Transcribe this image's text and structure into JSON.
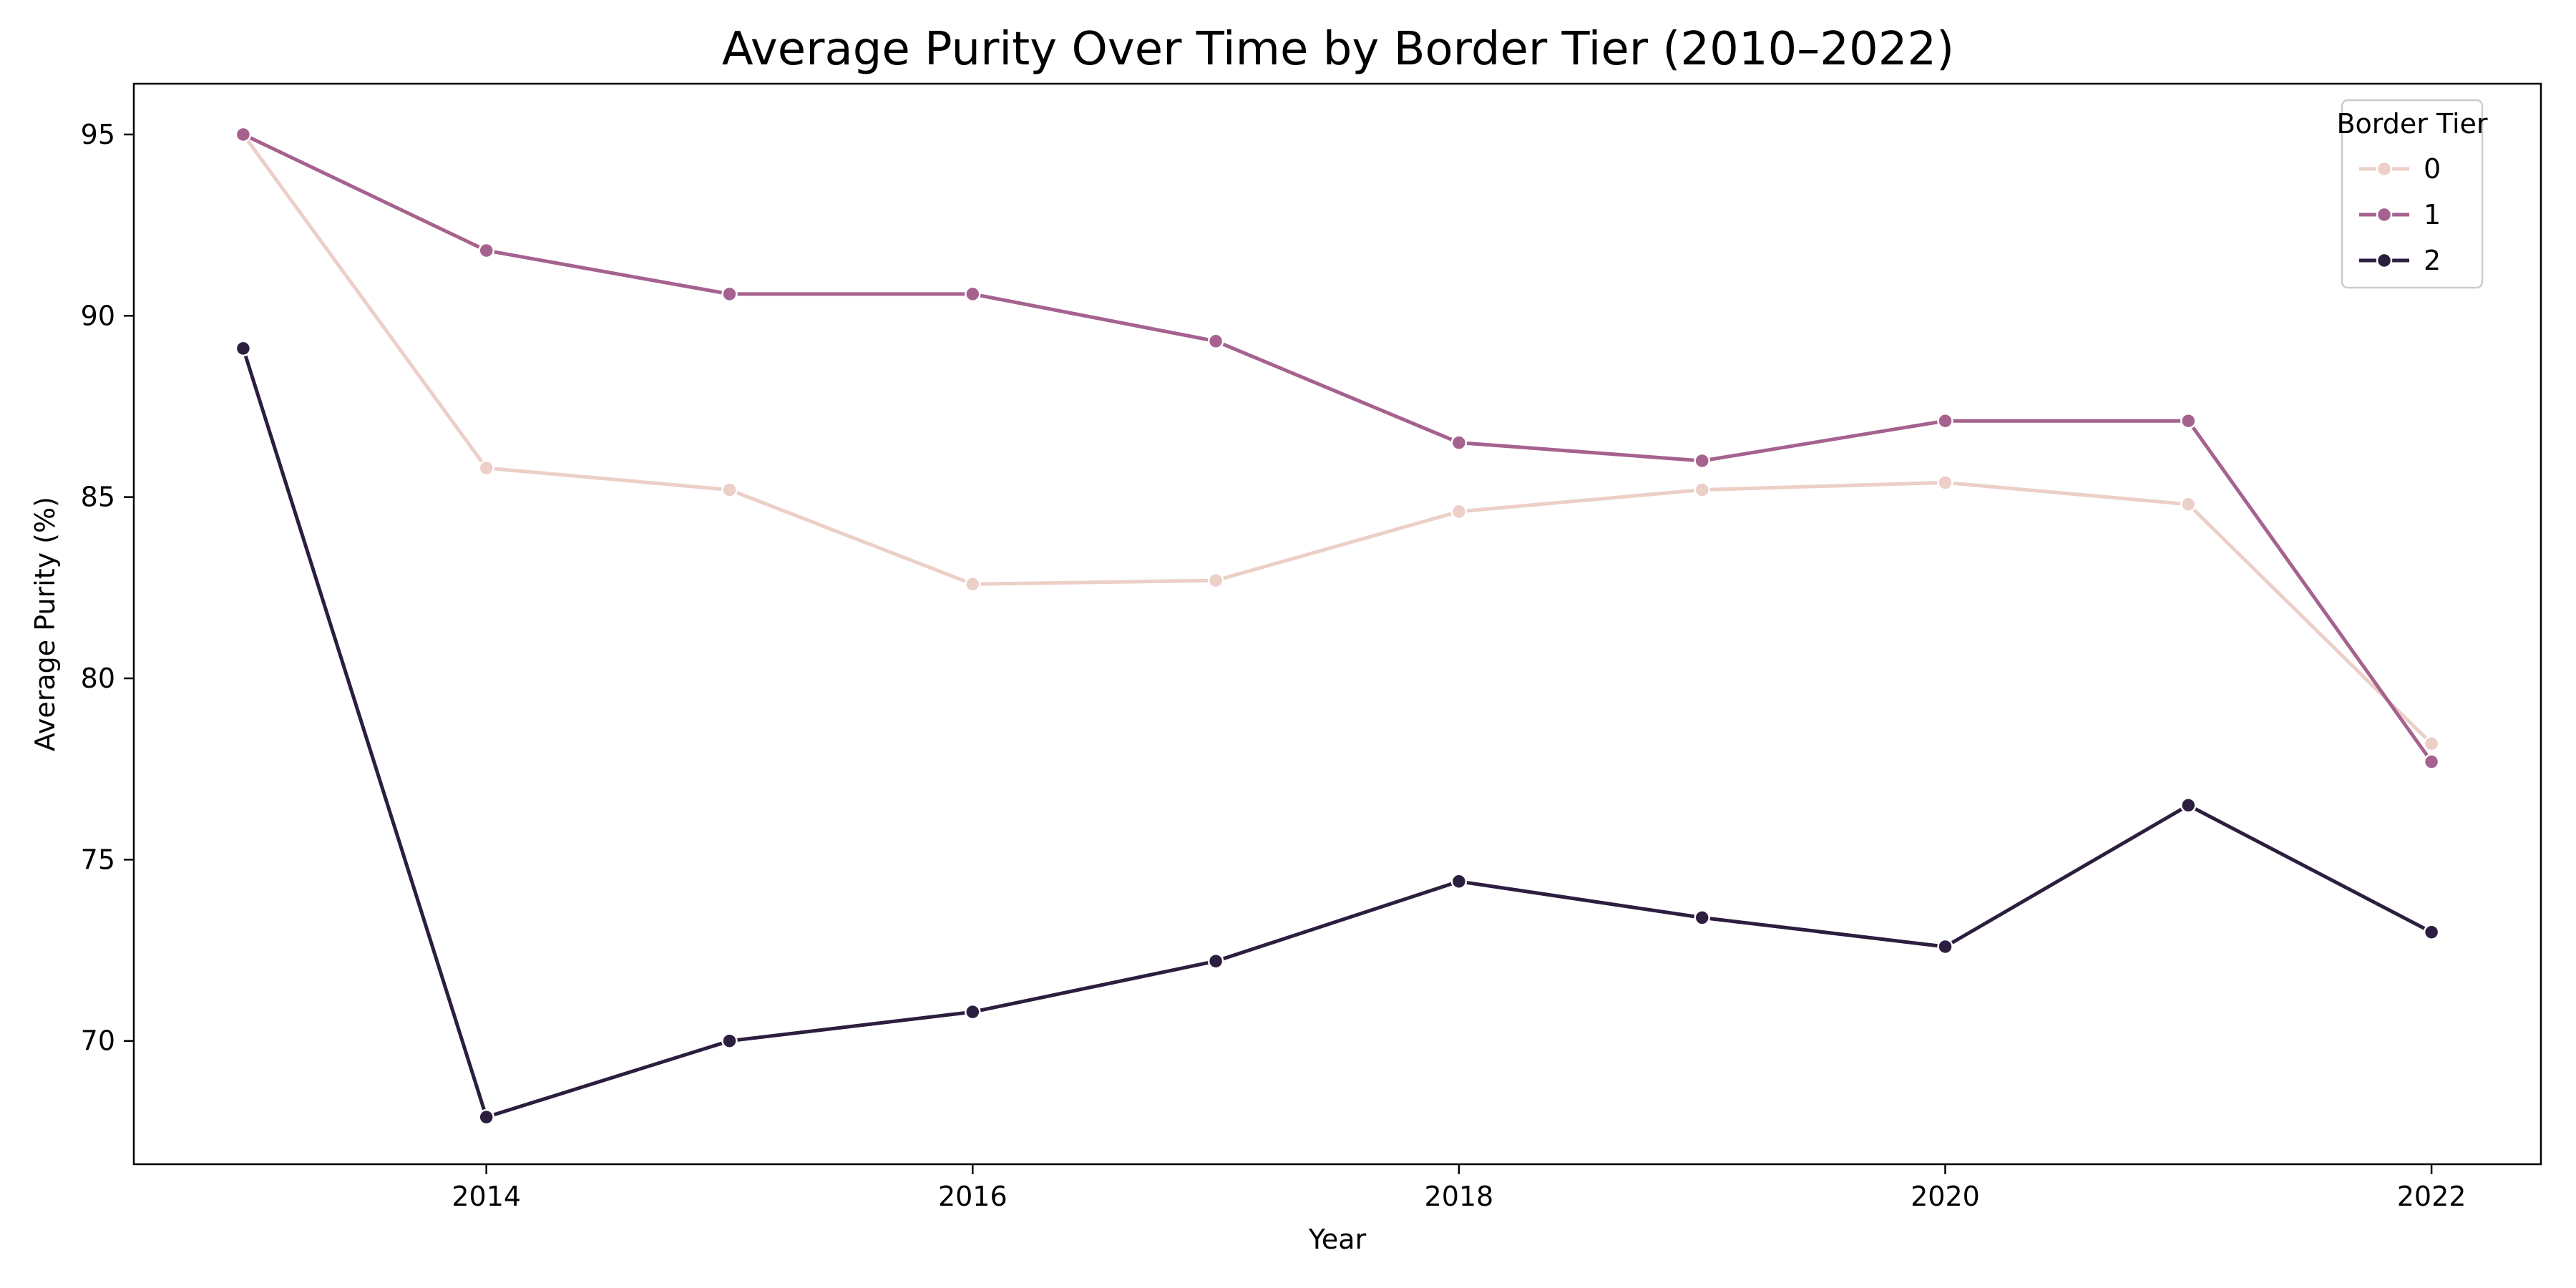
{
  "chart_data": {
    "type": "line",
    "title": "Average Purity Over Time by Border Tier (2010–2022)",
    "xlabel": "Year",
    "ylabel": "Average Purity (%)",
    "x": [
      2013,
      2014,
      2015,
      2016,
      2017,
      2018,
      2019,
      2020,
      2021,
      2022
    ],
    "xlim": [
      2012.55,
      2022.45
    ],
    "ylim": [
      66.6,
      96.4
    ],
    "xticks": [
      2014,
      2016,
      2018,
      2020,
      2022
    ],
    "yticks": [
      70,
      75,
      80,
      85,
      90,
      95
    ],
    "grid": false,
    "legend": {
      "title": "Border Tier",
      "placement": "top-right"
    },
    "series": [
      {
        "name": "0",
        "color": "#eccfc7",
        "values": [
          95.0,
          85.8,
          85.2,
          82.6,
          82.7,
          84.6,
          85.2,
          85.4,
          84.8,
          78.2
        ]
      },
      {
        "name": "1",
        "color": "#a5628f",
        "values": [
          95.0,
          91.8,
          90.6,
          90.6,
          89.3,
          86.5,
          86.0,
          87.1,
          87.1,
          77.7
        ]
      },
      {
        "name": "2",
        "color": "#2c1e3e",
        "values": [
          89.1,
          67.9,
          70.0,
          70.8,
          72.2,
          74.4,
          73.4,
          72.6,
          76.5,
          73.0
        ]
      }
    ]
  }
}
